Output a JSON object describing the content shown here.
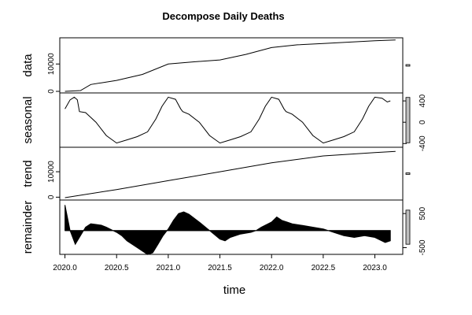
{
  "chart_data": {
    "type": "line",
    "title": "Decompose Daily Deaths",
    "xlabel": "time",
    "xlim": [
      2019.95,
      2023.27
    ],
    "x_ticks": [
      {
        "value": 2020.0,
        "label": "2020.0"
      },
      {
        "value": 2020.5,
        "label": "2020.5"
      },
      {
        "value": 2021.0,
        "label": "2021.0"
      },
      {
        "value": 2021.5,
        "label": "2021.5"
      },
      {
        "value": 2022.0,
        "label": "2022.0"
      },
      {
        "value": 2022.5,
        "label": "2022.5"
      },
      {
        "value": 2023.0,
        "label": "2023.0"
      }
    ],
    "panels": [
      {
        "name": "data",
        "ylabel": "data",
        "ylim": [
          0,
          19000
        ],
        "tick_side": "left",
        "y_ticks": [
          {
            "value": 0,
            "label": "0"
          },
          {
            "value": 10000,
            "label": "10000"
          }
        ],
        "range_bar": 300,
        "style": "line",
        "x": [
          2020.0,
          2020.15,
          2020.25,
          2020.5,
          2020.75,
          2021.0,
          2021.25,
          2021.5,
          2021.75,
          2022.0,
          2022.25,
          2022.5,
          2022.75,
          2023.0,
          2023.2
        ],
        "y": [
          0,
          300,
          2500,
          4000,
          6200,
          10000,
          10800,
          11500,
          13500,
          16000,
          17000,
          17500,
          18000,
          18500,
          18800
        ]
      },
      {
        "name": "seasonal",
        "ylabel": "seasonal",
        "ylim": [
          -440,
          520
        ],
        "tick_side": "right",
        "y_ticks": [
          {
            "value": 400,
            "label": "400"
          },
          {
            "value": 0,
            "label": "0"
          },
          {
            "value": -400,
            "label": "-400"
          }
        ],
        "range_bar": 850,
        "style": "line",
        "x": [
          2020.0,
          2020.05,
          2020.09,
          2020.12,
          2020.14,
          2020.2,
          2020.3,
          2020.4,
          2020.5,
          2020.6,
          2020.7,
          2020.8,
          2020.88,
          2020.94,
          2021.0,
          2021.07,
          2021.12,
          2021.14,
          2021.2,
          2021.3,
          2021.4,
          2021.5,
          2021.6,
          2021.7,
          2021.8,
          2021.88,
          2021.94,
          2022.0,
          2022.07,
          2022.12,
          2022.14,
          2022.2,
          2022.3,
          2022.4,
          2022.5,
          2022.6,
          2022.7,
          2022.8,
          2022.88,
          2022.94,
          2023.0,
          2023.07,
          2023.12,
          2023.15
        ],
        "y": [
          250,
          420,
          470,
          420,
          200,
          180,
          0,
          -250,
          -390,
          -330,
          -270,
          -180,
          60,
          300,
          470,
          430,
          250,
          200,
          150,
          0,
          -250,
          -390,
          -330,
          -270,
          -180,
          60,
          300,
          470,
          430,
          250,
          200,
          150,
          0,
          -250,
          -390,
          -330,
          -270,
          -180,
          60,
          300,
          470,
          450,
          380,
          400
        ]
      },
      {
        "name": "trend",
        "ylabel": "trend",
        "ylim": [
          -500,
          19000
        ],
        "tick_side": "left",
        "y_ticks": [
          {
            "value": 0,
            "label": "0"
          },
          {
            "value": 10000,
            "label": "10000"
          }
        ],
        "range_bar": 300,
        "style": "line",
        "x": [
          2020.0,
          2020.5,
          2021.0,
          2021.5,
          2022.0,
          2022.5,
          2023.0,
          2023.2
        ],
        "y": [
          -200,
          3000,
          6500,
          10000,
          13500,
          16200,
          17500,
          18000
        ]
      },
      {
        "name": "remainder",
        "ylabel": "remainder",
        "ylim": [
          -650,
          850
        ],
        "tick_side": "right",
        "y_ticks": [
          {
            "value": 500,
            "label": "500"
          },
          {
            "value": -500,
            "label": "-500"
          }
        ],
        "range_bar": 1000,
        "style": "area",
        "x": [
          2020.0,
          2020.05,
          2020.1,
          2020.15,
          2020.2,
          2020.25,
          2020.3,
          2020.35,
          2020.4,
          2020.5,
          2020.55,
          2020.6,
          2020.7,
          2020.8,
          2020.85,
          2020.9,
          2020.95,
          2021.0,
          2021.05,
          2021.1,
          2021.15,
          2021.2,
          2021.3,
          2021.4,
          2021.5,
          2021.55,
          2021.6,
          2021.7,
          2021.8,
          2021.85,
          2021.9,
          2022.0,
          2022.05,
          2022.1,
          2022.15,
          2022.2,
          2022.3,
          2022.4,
          2022.5,
          2022.6,
          2022.7,
          2022.8,
          2022.9,
          2023.0,
          2023.1,
          2023.15
        ],
        "y": [
          750,
          0,
          -400,
          -150,
          100,
          200,
          180,
          160,
          100,
          -50,
          -150,
          -300,
          -500,
          -700,
          -650,
          -400,
          -150,
          50,
          300,
          500,
          550,
          480,
          250,
          0,
          -250,
          -300,
          -200,
          -100,
          -50,
          0,
          100,
          250,
          400,
          300,
          250,
          200,
          150,
          100,
          50,
          -50,
          -150,
          -200,
          -150,
          -200,
          -350,
          -300
        ]
      }
    ]
  }
}
